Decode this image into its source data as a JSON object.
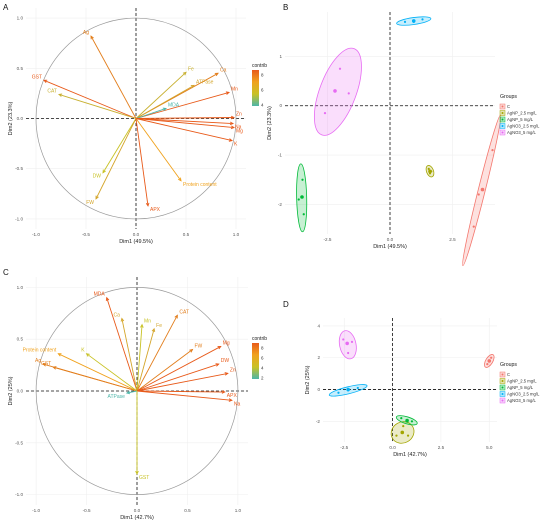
{
  "panel_letters": [
    "A",
    "B",
    "C",
    "D"
  ],
  "chart_data": [
    {
      "id": "A",
      "type": "scatter",
      "subtype": "pca-variable-correlation-circle",
      "xlabel": "Dim1 (49.5%)",
      "ylabel": "Dim2 (23.3%)",
      "xlim": [
        -1.1,
        1.1
      ],
      "ylim": [
        -1.1,
        1.1
      ],
      "xticks": [
        "-1.0",
        "-0.5",
        "0.0",
        "0.5",
        "1.0"
      ],
      "yticks": [
        "1.0",
        "0.5",
        "0.0",
        "-0.5",
        "-1.0"
      ],
      "legend": {
        "title": "contrib",
        "ticks": [
          "8",
          "6",
          "4"
        ],
        "colors": [
          "#e85a1a",
          "#f0a21d",
          "#c8c225",
          "#4db6a9"
        ]
      },
      "variables": [
        {
          "name": "Ag",
          "x": -0.45,
          "y": 0.82,
          "color": "#e27d1b"
        },
        {
          "name": "GST",
          "x": -0.92,
          "y": 0.38,
          "color": "#e85a1a"
        },
        {
          "name": "CAT",
          "x": -0.77,
          "y": 0.24,
          "color": "#c8b030"
        },
        {
          "name": "Ca",
          "x": 0.82,
          "y": 0.45,
          "color": "#e27d1b"
        },
        {
          "name": "Fe",
          "x": 0.5,
          "y": 0.46,
          "color": "#c8b030"
        },
        {
          "name": "ATPase",
          "x": 0.58,
          "y": 0.33,
          "color": "#d4a52a"
        },
        {
          "name": "Mn",
          "x": 0.93,
          "y": 0.26,
          "color": "#e85a1a"
        },
        {
          "name": "MDA",
          "x": 0.3,
          "y": 0.1,
          "color": "#4db6a9"
        },
        {
          "name": "Zn",
          "x": 0.98,
          "y": 0.01,
          "color": "#e85a1a"
        },
        {
          "name": "Na",
          "x": 0.97,
          "y": -0.05,
          "color": "#e85a1a"
        },
        {
          "name": "Mg",
          "x": 0.98,
          "y": -0.09,
          "color": "#e85a1a"
        },
        {
          "name": "K",
          "x": 0.96,
          "y": -0.22,
          "color": "#e85a1a"
        },
        {
          "name": "DW",
          "x": -0.33,
          "y": -0.54,
          "color": "#c8c225"
        },
        {
          "name": "FW",
          "x": -0.4,
          "y": -0.8,
          "color": "#d4a52a"
        },
        {
          "name": "Protein content",
          "x": 0.45,
          "y": -0.62,
          "color": "#f0a21d"
        },
        {
          "name": "APX",
          "x": 0.12,
          "y": -0.87,
          "color": "#e85a1a"
        }
      ]
    },
    {
      "id": "B",
      "type": "scatter",
      "subtype": "pca-individuals",
      "xlabel": "Dim1 (49.5%)",
      "ylabel": "Dim2 (23.3%)",
      "xlim": [
        -4.2,
        4.2
      ],
      "ylim": [
        -2.6,
        1.9
      ],
      "xticks": [
        "-2.5",
        "0.0",
        "2.5"
      ],
      "yticks": [
        "1",
        "0",
        "-1",
        "-2"
      ],
      "legend": {
        "title": "Groups",
        "position": "right"
      },
      "series": [
        {
          "name": "C",
          "color": "#f4766d",
          "points": [
            [
              3.55,
              -1.8
            ],
            [
              4.1,
              -0.9
            ],
            [
              3.35,
              -2.45
            ]
          ],
          "center": [
            3.7,
            -1.7
          ]
        },
        {
          "name": "AgNP_2.5 mg/L",
          "color": "#a3a500",
          "points": [
            [
              1.55,
              -1.28
            ],
            [
              1.65,
              -1.33
            ],
            [
              1.6,
              -1.37
            ]
          ],
          "center": [
            1.6,
            -1.33
          ]
        },
        {
          "name": "AgNP_5 mg/L",
          "color": "#00ba38",
          "points": [
            [
              -3.5,
              -1.5
            ],
            [
              -3.45,
              -2.2
            ],
            [
              -3.65,
              -1.9
            ]
          ],
          "center": [
            -3.52,
            -1.85
          ]
        },
        {
          "name": "AgNO3_2.5 mg/L",
          "color": "#00b0f6",
          "points": [
            [
              0.6,
              1.7
            ],
            [
              0.95,
              1.7
            ],
            [
              1.3,
              1.75
            ]
          ],
          "center": [
            0.95,
            1.72
          ]
        },
        {
          "name": "AgNO3_5 mg/L",
          "color": "#e76bf3",
          "points": [
            [
              -2.0,
              0.75
            ],
            [
              -2.6,
              -0.15
            ],
            [
              -1.65,
              0.25
            ]
          ],
          "center": [
            -2.2,
            0.3
          ]
        }
      ]
    },
    {
      "id": "C",
      "type": "scatter",
      "subtype": "pca-variable-correlation-circle",
      "xlabel": "Dim1 (42.7%)",
      "ylabel": "Dim2 (25%)",
      "xlim": [
        -1.1,
        1.1
      ],
      "ylim": [
        -1.1,
        1.1
      ],
      "xticks": [
        "-1.0",
        "-0.5",
        "0.0",
        "0.5",
        "1.0"
      ],
      "yticks": [
        "1.0",
        "0.5",
        "0.0",
        "-0.5",
        "-1.0"
      ],
      "legend": {
        "title": "contrib",
        "ticks": [
          "8",
          "6",
          "4",
          "2"
        ],
        "colors": [
          "#e85a1a",
          "#f0a21d",
          "#c8c225",
          "#4db6a9"
        ]
      },
      "variables": [
        {
          "name": "MDA",
          "x": -0.3,
          "y": 0.9,
          "color": "#e85a1a"
        },
        {
          "name": "Ca",
          "x": -0.15,
          "y": 0.7,
          "color": "#d4a52a"
        },
        {
          "name": "Mn",
          "x": 0.05,
          "y": 0.64,
          "color": "#c8c225"
        },
        {
          "name": "Fe",
          "x": 0.17,
          "y": 0.6,
          "color": "#d4a52a"
        },
        {
          "name": "CAT",
          "x": 0.4,
          "y": 0.73,
          "color": "#e27d1b"
        },
        {
          "name": "Protein content",
          "x": -0.78,
          "y": 0.36,
          "color": "#f0a21d"
        },
        {
          "name": "Ag",
          "x": -0.93,
          "y": 0.26,
          "color": "#e27d1b"
        },
        {
          "name": "GST",
          "x": -0.83,
          "y": 0.23,
          "color": "#e27d1b"
        },
        {
          "name": "K",
          "x": -0.5,
          "y": 0.36,
          "color": "#c8c225"
        },
        {
          "name": "FW",
          "x": 0.55,
          "y": 0.4,
          "color": "#e27d1b"
        },
        {
          "name": "Mg",
          "x": 0.83,
          "y": 0.43,
          "color": "#e85a1a"
        },
        {
          "name": "DW",
          "x": 0.81,
          "y": 0.26,
          "color": "#e85a1a"
        },
        {
          "name": "Zn",
          "x": 0.9,
          "y": 0.17,
          "color": "#e85a1a"
        },
        {
          "name": "APX",
          "x": 0.87,
          "y": -0.01,
          "color": "#e85a1a"
        },
        {
          "name": "Na",
          "x": 0.94,
          "y": -0.09,
          "color": "#e85a1a"
        },
        {
          "name": "ATPase",
          "x": -0.1,
          "y": -0.02,
          "color": "#4db6a9"
        },
        {
          "name": "GST2",
          "label": "GST",
          "x": 0.0,
          "y": -0.8,
          "color": "#c8c225"
        }
      ]
    },
    {
      "id": "D",
      "type": "scatter",
      "subtype": "pca-individuals",
      "xlabel": "Dim1 (42.7%)",
      "ylabel": "Dim2 (25%)",
      "xlim": [
        -3.6,
        5.4
      ],
      "ylim": [
        -3.3,
        4.5
      ],
      "xticks": [
        "-2.5",
        "0.0",
        "2.5",
        "5.0"
      ],
      "yticks": [
        "4",
        "2",
        "0",
        "-2"
      ],
      "legend": {
        "title": "Groups",
        "position": "right"
      },
      "series": [
        {
          "name": "C",
          "color": "#f4766d",
          "points": [
            [
              5.0,
              1.8
            ],
            [
              5.1,
              2.0
            ],
            [
              4.9,
              1.6
            ]
          ],
          "center": [
            5.0,
            1.8
          ]
        },
        {
          "name": "AgNP_2.5 mg/L",
          "color": "#a3a500",
          "points": [
            [
              0.2,
              -2.9
            ],
            [
              0.55,
              -2.3
            ],
            [
              0.8,
              -2.9
            ]
          ],
          "center": [
            0.5,
            -2.7
          ]
        },
        {
          "name": "AgNP_5 mg/L",
          "color": "#00ba38",
          "points": [
            [
              0.45,
              -1.8
            ],
            [
              0.75,
              -2.0
            ],
            [
              1.0,
              -2.0
            ]
          ],
          "center": [
            0.75,
            -1.95
          ]
        },
        {
          "name": "AgNO3_2.5 mg/L",
          "color": "#00b0f6",
          "points": [
            [
              -2.8,
              -0.2
            ],
            [
              -1.8,
              0.1
            ],
            [
              -2.3,
              -0.05
            ]
          ],
          "center": [
            -2.3,
            0.0
          ]
        },
        {
          "name": "AgNO3_5 mg/L",
          "color": "#e76bf3",
          "points": [
            [
              -2.55,
              3.15
            ],
            [
              -2.3,
              2.3
            ],
            [
              -2.1,
              3.0
            ]
          ],
          "center": [
            -2.35,
            2.9
          ]
        }
      ]
    }
  ]
}
